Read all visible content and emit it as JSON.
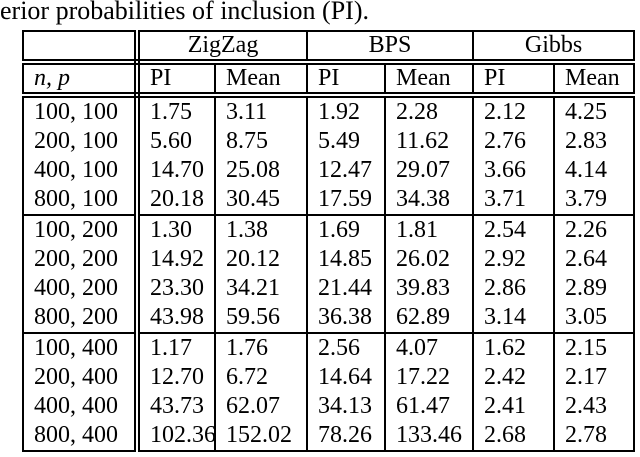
{
  "caption_fragment": "erior probabilities of inclusion (PI).",
  "table": {
    "group_headers": [
      "",
      "ZigZag",
      "BPS",
      "Gibbs"
    ],
    "col_headers": [
      "n, p",
      "PI",
      "Mean",
      "PI",
      "Mean",
      "PI",
      "Mean"
    ],
    "row_groups": [
      {
        "rows": [
          {
            "np": "100, 100",
            "values": [
              "1.75",
              "3.11",
              "1.92",
              "2.28",
              "2.12",
              "4.25"
            ]
          },
          {
            "np": "200, 100",
            "values": [
              "5.60",
              "8.75",
              "5.49",
              "11.62",
              "2.76",
              "2.83"
            ]
          },
          {
            "np": "400, 100",
            "values": [
              "14.70",
              "25.08",
              "12.47",
              "29.07",
              "3.66",
              "4.14"
            ]
          },
          {
            "np": "800, 100",
            "values": [
              "20.18",
              "30.45",
              "17.59",
              "34.38",
              "3.71",
              "3.79"
            ]
          }
        ]
      },
      {
        "rows": [
          {
            "np": "100, 200",
            "values": [
              "1.30",
              "1.38",
              "1.69",
              "1.81",
              "2.54",
              "2.26"
            ]
          },
          {
            "np": "200, 200",
            "values": [
              "14.92",
              "20.12",
              "14.85",
              "26.02",
              "2.92",
              "2.64"
            ]
          },
          {
            "np": "400, 200",
            "values": [
              "23.30",
              "34.21",
              "21.44",
              "39.83",
              "2.86",
              "2.89"
            ]
          },
          {
            "np": "800, 200",
            "values": [
              "43.98",
              "59.56",
              "36.38",
              "62.89",
              "3.14",
              "3.05"
            ]
          }
        ]
      },
      {
        "rows": [
          {
            "np": "100, 400",
            "values": [
              "1.17",
              "1.76",
              "2.56",
              "4.07",
              "1.62",
              "2.15"
            ]
          },
          {
            "np": "200, 400",
            "values": [
              "12.70",
              "6.72",
              "14.64",
              "17.22",
              "2.42",
              "2.17"
            ]
          },
          {
            "np": "400, 400",
            "values": [
              "43.73",
              "62.07",
              "34.13",
              "61.47",
              "2.41",
              "2.43"
            ]
          },
          {
            "np": "800, 400",
            "values": [
              "102.36",
              "152.02",
              "78.26",
              "133.46",
              "2.68",
              "2.78"
            ]
          }
        ]
      }
    ]
  },
  "colors": {
    "text": "#000000",
    "background": "#ffffff",
    "border": "#000000"
  }
}
